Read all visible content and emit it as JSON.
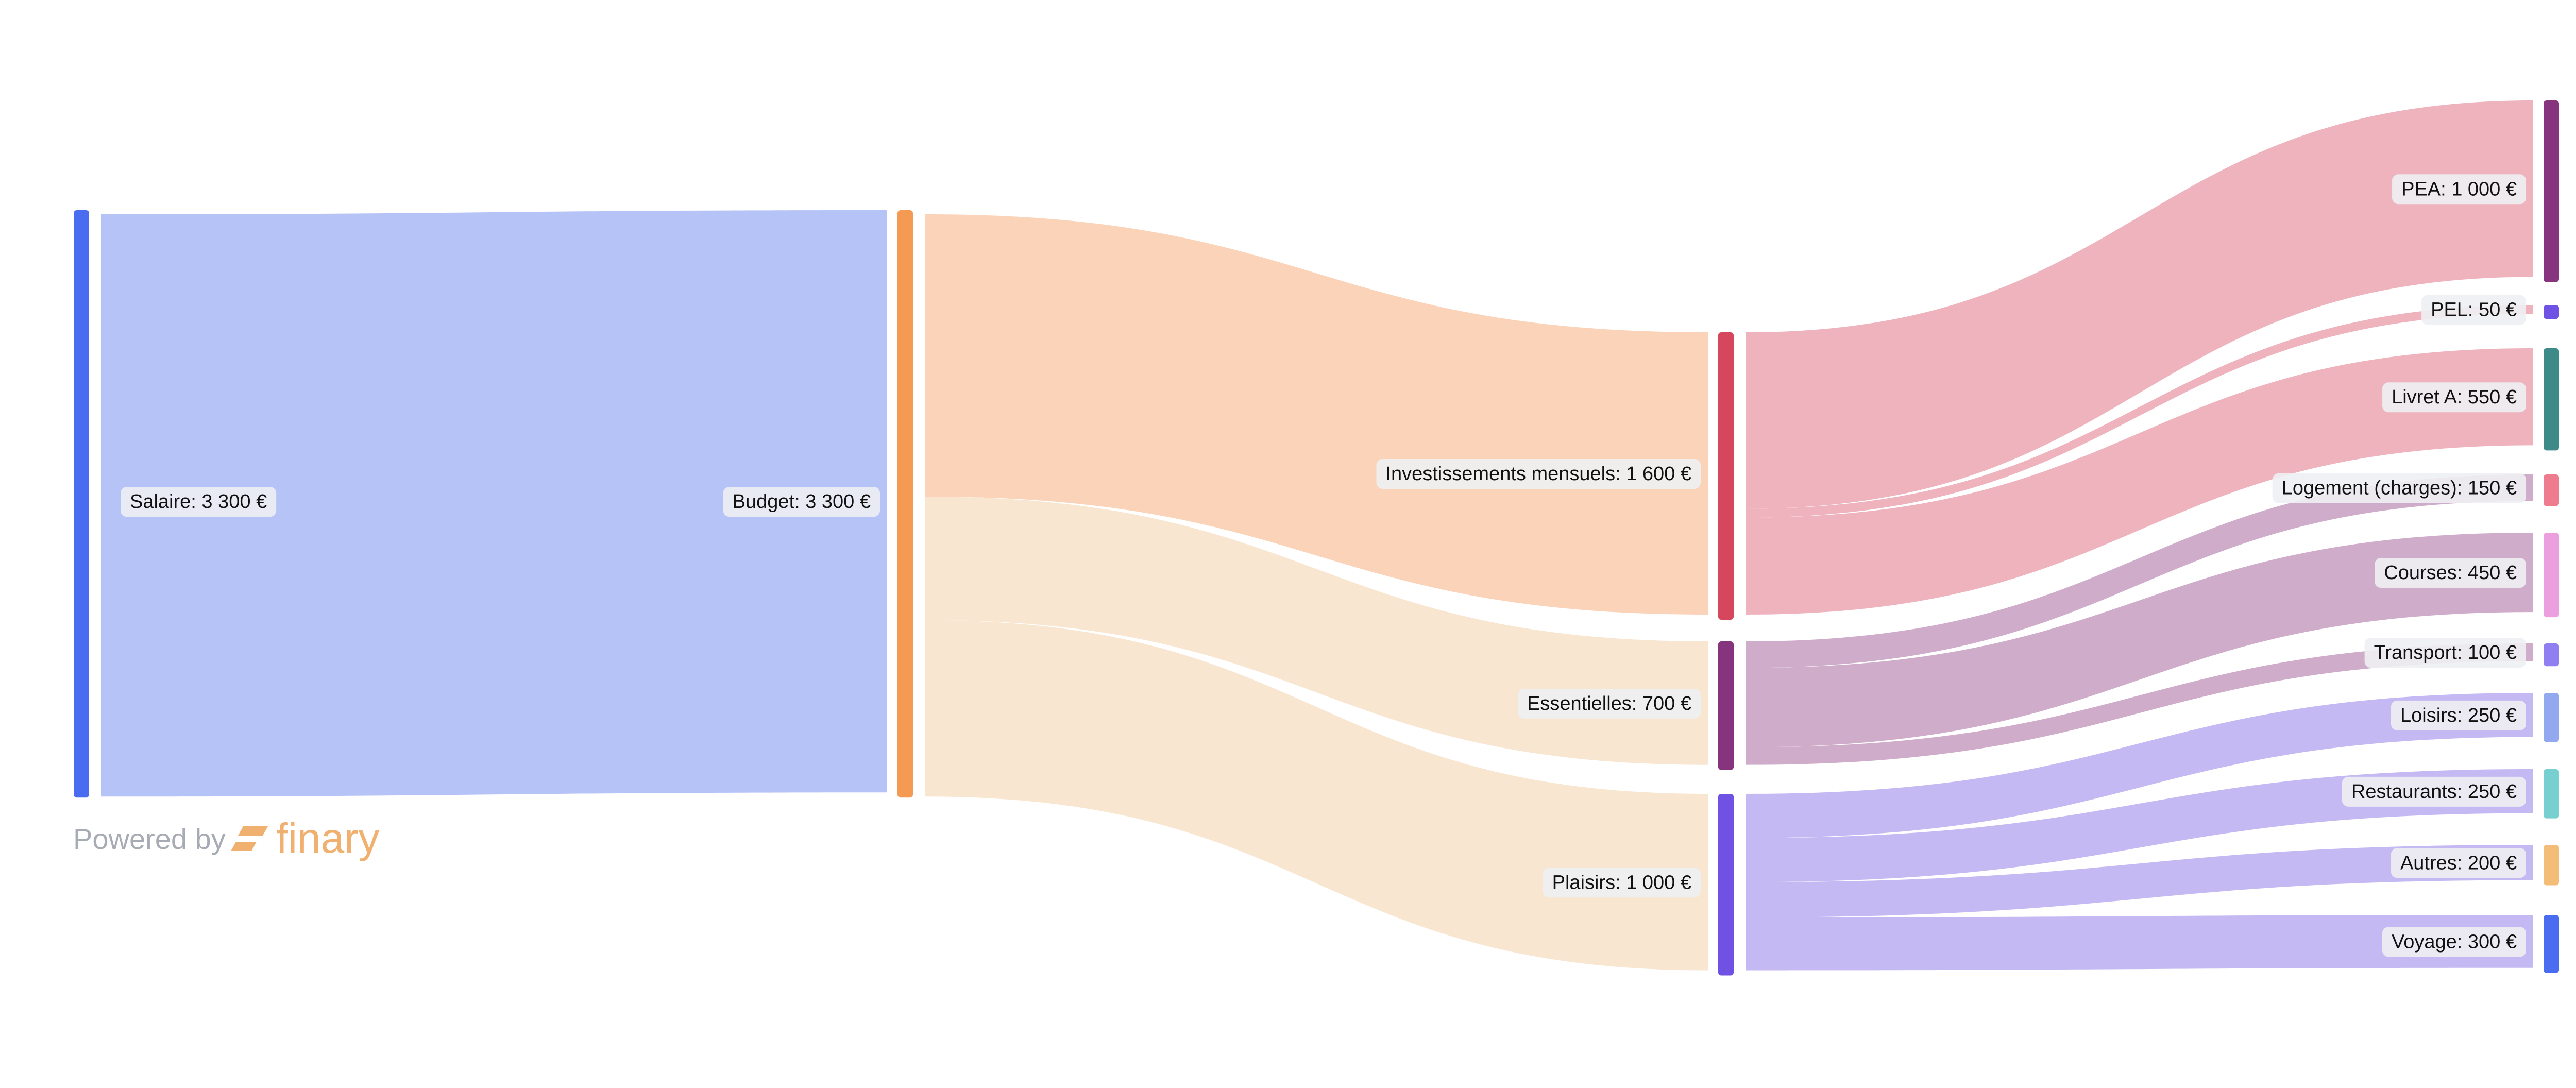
{
  "chart_data": {
    "type": "sankey",
    "unit": "€",
    "nodes": [
      {
        "id": "salaire",
        "label": "Salaire: 3 300 €",
        "value": 3300,
        "color": "#4a6cf0"
      },
      {
        "id": "budget",
        "label": "Budget: 3 300 €",
        "value": 3300,
        "color": "#f59a52"
      },
      {
        "id": "invest",
        "label": "Investissements mensuels: 1 600 €",
        "value": 1600,
        "color": "#d6475e"
      },
      {
        "id": "essentielles",
        "label": "Essentielles: 700 €",
        "value": 700,
        "color": "#86347e"
      },
      {
        "id": "plaisirs",
        "label": "Plaisirs: 1 000 €",
        "value": 1000,
        "color": "#6f52e3"
      },
      {
        "id": "pea",
        "label": "PEA: 1 000 €",
        "value": 1000,
        "color": "#86347e"
      },
      {
        "id": "pel",
        "label": "PEL: 50 €",
        "value": 50,
        "color": "#6f52e3"
      },
      {
        "id": "livreta",
        "label": "Livret A: 550 €",
        "value": 550,
        "color": "#3d8a88"
      },
      {
        "id": "logement",
        "label": "Logement (charges): 150 €",
        "value": 150,
        "color": "#ee7b8e"
      },
      {
        "id": "courses",
        "label": "Courses: 450 €",
        "value": 450,
        "color": "#ec9fde"
      },
      {
        "id": "transport",
        "label": "Transport: 100 €",
        "value": 100,
        "color": "#8f7ff0"
      },
      {
        "id": "loisirs",
        "label": "Loisirs: 250 €",
        "value": 250,
        "color": "#93a9ef"
      },
      {
        "id": "restaurants",
        "label": "Restaurants: 250 €",
        "value": 250,
        "color": "#78cfcf"
      },
      {
        "id": "autres",
        "label": "Autres: 200 €",
        "value": 200,
        "color": "#f3bd78"
      },
      {
        "id": "voyage",
        "label": "Voyage: 300 €",
        "value": 300,
        "color": "#4a6cf0"
      }
    ],
    "links": [
      {
        "source": "salaire",
        "target": "budget",
        "value": 3300,
        "color": "#b5c3f7"
      },
      {
        "source": "budget",
        "target": "invest",
        "value": 1600,
        "color": "#fbd3b8"
      },
      {
        "source": "budget",
        "target": "essentielles",
        "value": 700,
        "color": "#f8e6d0"
      },
      {
        "source": "budget",
        "target": "plaisirs",
        "value": 1000,
        "color": "#f8e6d0"
      },
      {
        "source": "invest",
        "target": "pea",
        "value": 1000,
        "color": "#eeb3bd"
      },
      {
        "source": "invest",
        "target": "pel",
        "value": 50,
        "color": "#eeb3bd"
      },
      {
        "source": "invest",
        "target": "livreta",
        "value": 550,
        "color": "#eeb3bd"
      },
      {
        "source": "essentielles",
        "target": "logement",
        "value": 150,
        "color": "#cfadca"
      },
      {
        "source": "essentielles",
        "target": "courses",
        "value": 450,
        "color": "#cfadca"
      },
      {
        "source": "essentielles",
        "target": "transport",
        "value": 100,
        "color": "#cfadca"
      },
      {
        "source": "plaisirs",
        "target": "loisirs",
        "value": 250,
        "color": "#c5b9f3"
      },
      {
        "source": "plaisirs",
        "target": "restaurants",
        "value": 250,
        "color": "#c5b9f3"
      },
      {
        "source": "plaisirs",
        "target": "autres",
        "value": 200,
        "color": "#c5b9f3"
      },
      {
        "source": "plaisirs",
        "target": "voyage",
        "value": 300,
        "color": "#c5b9f3"
      }
    ]
  },
  "footer": {
    "powered_by": "Powered by",
    "brand": "finary",
    "brand_color": "#f0b070"
  }
}
